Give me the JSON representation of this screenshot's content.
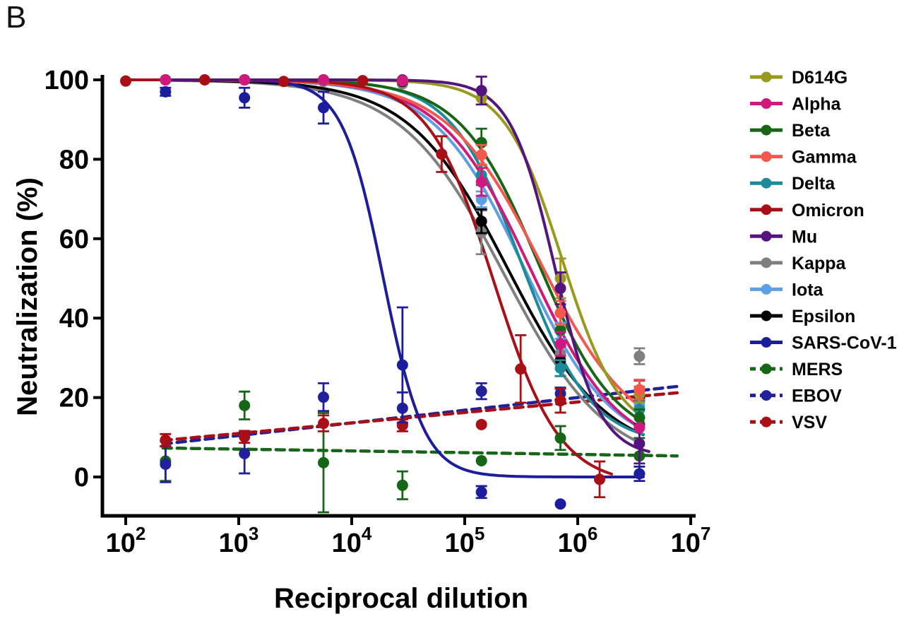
{
  "panel_label": "B",
  "chart_data": {
    "type": "line",
    "xlabel": "Reciprocal dilution",
    "ylabel": "Neutralization (%)",
    "x_scale": "log10",
    "x_tick_base": "10",
    "x_tick_exponents": [
      2,
      3,
      4,
      5,
      6,
      7
    ],
    "y_ticks": [
      0,
      20,
      40,
      60,
      80,
      100
    ],
    "x_range_log": [
      2,
      7
    ],
    "y_range": [
      -10,
      102
    ],
    "grid": false,
    "legend_position": "right",
    "series": [
      {
        "name": "D614G",
        "color": "#9a991f",
        "line": "solid",
        "points": [
          [
            225,
            100
          ],
          [
            1125,
            100
          ],
          [
            5625,
            100
          ],
          [
            28125,
            99.8
          ],
          [
            140625,
            95.4
          ],
          [
            703125,
            50,
            5
          ],
          [
            3515625,
            20.8,
            2
          ]
        ],
        "fit": {
          "type": "4pl",
          "top": 100,
          "bottom": 10,
          "log_ec50": 5.86,
          "hill": 1.7,
          "log_range": [
            2.33,
            6.6
          ]
        }
      },
      {
        "name": "Alpha",
        "color": "#d0197c",
        "line": "solid",
        "points": [
          [
            225,
            100
          ],
          [
            1125,
            100
          ],
          [
            5625,
            100
          ],
          [
            28125,
            99.8
          ],
          [
            140625,
            74.3,
            3.5
          ],
          [
            703125,
            33.5,
            3
          ],
          [
            3515625,
            12.4
          ]
        ],
        "fit": {
          "type": "4pl",
          "top": 100,
          "bottom": 5,
          "log_ec50": 5.58,
          "hill": 1.1,
          "log_range": [
            2.33,
            6.6
          ]
        }
      },
      {
        "name": "Beta",
        "color": "#176517",
        "line": "solid",
        "points": [
          [
            225,
            100
          ],
          [
            1125,
            100
          ],
          [
            5625,
            100
          ],
          [
            28125,
            99.8
          ],
          [
            140625,
            84.2,
            3.5
          ],
          [
            703125,
            37,
            4
          ],
          [
            3515625,
            15,
            2
          ]
        ],
        "fit": {
          "type": "4pl",
          "top": 100,
          "bottom": 8,
          "log_ec50": 5.65,
          "hill": 1.25,
          "log_range": [
            2.33,
            6.6
          ]
        }
      },
      {
        "name": "Gamma",
        "color": "#f3574d",
        "line": "solid",
        "points": [
          [
            225,
            100
          ],
          [
            1125,
            100
          ],
          [
            5625,
            100
          ],
          [
            28125,
            99.8
          ],
          [
            140625,
            81.1,
            2.5
          ],
          [
            703125,
            41.3,
            3
          ],
          [
            3515625,
            22,
            2.5
          ]
        ],
        "fit": {
          "type": "4pl",
          "top": 100,
          "bottom": 8,
          "log_ec50": 5.67,
          "hill": 1.05,
          "log_range": [
            2.33,
            6.6
          ]
        }
      },
      {
        "name": "Delta",
        "color": "#1d8a99",
        "line": "solid",
        "points": [
          [
            225,
            100
          ],
          [
            1125,
            100
          ],
          [
            5625,
            100
          ],
          [
            28125,
            99.8
          ],
          [
            140625,
            76,
            2.5
          ],
          [
            703125,
            27.4,
            2
          ],
          [
            3515625,
            17,
            2
          ]
        ],
        "fit": {
          "type": "4pl",
          "top": 100,
          "bottom": 8,
          "log_ec50": 5.5,
          "hill": 1.4,
          "log_range": [
            2.33,
            6.6
          ]
        }
      },
      {
        "name": "Omicron",
        "color": "#a80f16",
        "line": "solid",
        "points": [
          [
            100,
            99.7
          ],
          [
            500,
            100
          ],
          [
            2500,
            99.6
          ],
          [
            12500,
            99.8
          ],
          [
            62500,
            81.3,
            4.5
          ],
          [
            312500,
            27.2,
            8.5
          ],
          [
            1562500,
            -0.6,
            4.5
          ]
        ],
        "fit": {
          "type": "4pl",
          "top": 100,
          "bottom": -2,
          "log_ec50": 5.26,
          "hill": 1.5,
          "log_range": [
            2.0,
            6.3
          ]
        }
      },
      {
        "name": "Mu",
        "color": "#55137d",
        "line": "solid",
        "points": [
          [
            225,
            100
          ],
          [
            1125,
            100
          ],
          [
            5625,
            100
          ],
          [
            28125,
            100
          ],
          [
            140625,
            97.3,
            3.5
          ],
          [
            703125,
            47.5,
            4
          ],
          [
            3515625,
            8.4,
            5
          ]
        ],
        "fit": {
          "type": "4pl",
          "top": 100,
          "bottom": 5,
          "log_ec50": 5.8,
          "hill": 2.2,
          "log_range": [
            2.33,
            6.63
          ]
        }
      },
      {
        "name": "Kappa",
        "color": "#7f7f7f",
        "line": "solid",
        "points": [
          [
            225,
            100
          ],
          [
            1125,
            100
          ],
          [
            5625,
            99.6
          ],
          [
            28125,
            99
          ],
          [
            140625,
            61.6,
            5.5
          ],
          [
            703125,
            31
          ],
          [
            3515625,
            30.4,
            2
          ]
        ],
        "fit": {
          "type": "4pl",
          "top": 100,
          "bottom": 2,
          "log_ec50": 5.35,
          "hill": 0.95,
          "log_range": [
            2.33,
            6.6
          ]
        }
      },
      {
        "name": "Iota",
        "color": "#5d9fe3",
        "line": "solid",
        "points": [
          [
            225,
            100
          ],
          [
            1125,
            100
          ],
          [
            5625,
            100
          ],
          [
            28125,
            99.8
          ],
          [
            140625,
            69.9,
            2
          ],
          [
            703125,
            36.8,
            2
          ],
          [
            3515625,
            18
          ]
        ],
        "fit": {
          "type": "4pl",
          "top": 100,
          "bottom": 6,
          "log_ec50": 5.52,
          "hill": 1.1,
          "log_range": [
            2.33,
            6.6
          ]
        }
      },
      {
        "name": "Epsilon",
        "color": "#000000",
        "line": "solid",
        "points": [
          [
            225,
            100
          ],
          [
            1125,
            100
          ],
          [
            5625,
            100
          ],
          [
            28125,
            99.6
          ],
          [
            140625,
            64.4,
            3
          ],
          [
            703125,
            29.4,
            4
          ],
          [
            3515625,
            19.4
          ]
        ],
        "fit": {
          "type": "4pl",
          "top": 100,
          "bottom": 5,
          "log_ec50": 5.38,
          "hill": 1.0,
          "log_range": [
            2.33,
            6.6
          ]
        }
      },
      {
        "name": "SARS-CoV-1",
        "color": "#1c1c9e",
        "line": "solid",
        "points": [
          [
            225,
            97,
            1
          ],
          [
            1125,
            95.5,
            2.5
          ],
          [
            5625,
            93,
            4
          ],
          [
            28125,
            28.2,
            14.5
          ],
          [
            140625,
            -3.8,
            1.5
          ],
          [
            703125,
            -6.8
          ],
          [
            3515625,
            0.8,
            1.8
          ]
        ],
        "fit": {
          "type": "4pl",
          "top": 100,
          "bottom": 0,
          "log_ec50": 4.28,
          "hill": 2.4,
          "log_range": [
            2.33,
            6.58
          ]
        }
      },
      {
        "name": "MERS",
        "color": "#176517",
        "line": "dashed",
        "points": [
          [
            225,
            4,
            5
          ],
          [
            1125,
            18,
            3.5
          ],
          [
            5625,
            3.6,
            12.5
          ],
          [
            28125,
            -2.1,
            3.5
          ],
          [
            140625,
            4.1
          ],
          [
            703125,
            9.8,
            3
          ],
          [
            3515625,
            5.3,
            4.5
          ]
        ],
        "fit": {
          "type": "line-log",
          "from": [
            2.33,
            7.3
          ],
          "to": [
            6.88,
            5.3
          ]
        }
      },
      {
        "name": "EBOV",
        "color": "#21219b",
        "line": "dashed",
        "points": [
          [
            225,
            3.2,
            4.5
          ],
          [
            1125,
            5.9,
            5
          ],
          [
            5625,
            20.1,
            3.5
          ],
          [
            28125,
            17.3,
            4
          ],
          [
            140625,
            21.6,
            2
          ],
          [
            703125,
            21,
            1.5
          ],
          [
            3515625,
            19.8
          ]
        ],
        "fit": {
          "type": "line-log",
          "from": [
            2.33,
            8.3
          ],
          "to": [
            6.88,
            22.8
          ]
        }
      },
      {
        "name": "VSV",
        "color": "#a80f16",
        "line": "dashed",
        "points": [
          [
            225,
            9.3,
            1.5
          ],
          [
            1125,
            10.1,
            1.5
          ],
          [
            5625,
            13.5,
            2
          ],
          [
            28125,
            13,
            1.5
          ],
          [
            140625,
            13.2
          ],
          [
            703125,
            19.2,
            3
          ],
          [
            3515625,
            21.8,
            2.5
          ]
        ],
        "fit": {
          "type": "line-log",
          "from": [
            2.33,
            9.2
          ],
          "to": [
            6.88,
            21.2
          ]
        }
      }
    ]
  }
}
